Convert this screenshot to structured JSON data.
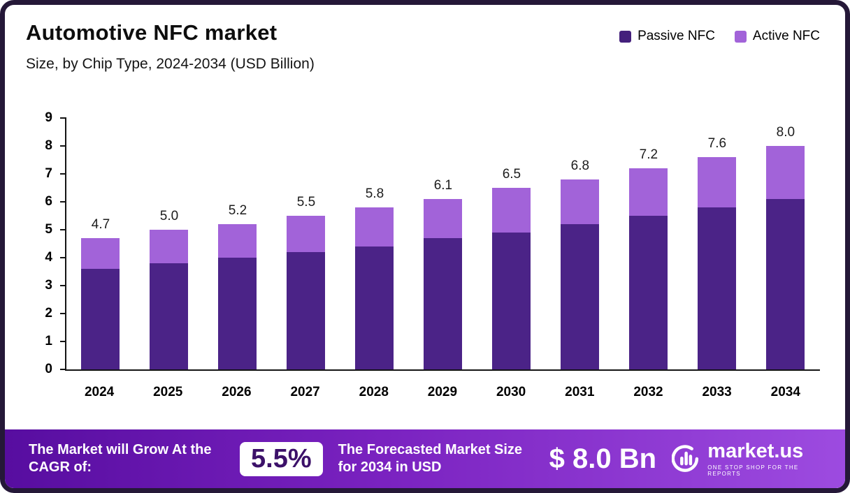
{
  "header": {
    "title": "Automotive NFC market",
    "subtitle": "Size, by Chip Type, 2024-2034 (USD Billion)"
  },
  "legend": [
    {
      "label": "Passive NFC",
      "color": "#44207c"
    },
    {
      "label": "Active NFC",
      "color": "#a263d9"
    }
  ],
  "chart_data": {
    "type": "bar",
    "stacked": true,
    "title": "Automotive NFC market Size, by Chip Type, 2024-2034 (USD Billion)",
    "xlabel": "",
    "ylabel": "",
    "legend_position": "top-right",
    "categories": [
      "2024",
      "2025",
      "2026",
      "2027",
      "2028",
      "2029",
      "2030",
      "2031",
      "2032",
      "2033",
      "2034"
    ],
    "series": [
      {
        "name": "Passive NFC",
        "color": "#4b2387",
        "values": [
          3.6,
          3.8,
          4.0,
          4.2,
          4.4,
          4.7,
          4.9,
          5.2,
          5.5,
          5.8,
          6.1
        ]
      },
      {
        "name": "Active NFC",
        "color": "#a263d9",
        "values": [
          1.1,
          1.2,
          1.2,
          1.3,
          1.4,
          1.4,
          1.6,
          1.6,
          1.7,
          1.8,
          1.9
        ]
      }
    ],
    "totals": [
      4.7,
      5.0,
      5.2,
      5.5,
      5.8,
      6.1,
      6.5,
      6.8,
      7.2,
      7.6,
      8.0
    ],
    "total_labels": [
      "4.7",
      "5.0",
      "5.2",
      "5.5",
      "5.8",
      "6.1",
      "6.5",
      "6.8",
      "7.2",
      "7.6",
      "8.0"
    ],
    "ylim": [
      0,
      9
    ],
    "yticks": [
      0,
      1,
      2,
      3,
      4,
      5,
      6,
      7,
      8,
      9
    ],
    "grid": false
  },
  "footer": {
    "cagr_label": "The Market will Grow At the CAGR of:",
    "cagr_value": "5.5%",
    "forecast_label": "The Forecasted Market Size for 2034 in USD",
    "forecast_value": "$ 8.0 Bn",
    "brand": "market.us",
    "brand_tagline": "ONE STOP SHOP FOR THE REPORTS"
  }
}
